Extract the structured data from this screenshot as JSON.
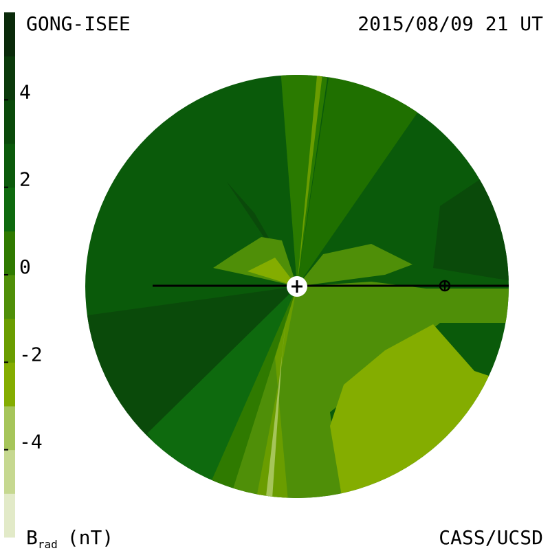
{
  "header": {
    "left": "GONG-ISEE",
    "right": "2015/08/09 21 UT"
  },
  "footer": {
    "right": "CASS/UCSD"
  },
  "colorbar": {
    "label": "B",
    "subscript": "rad",
    "unit": "(nT)",
    "lim": [
      -6,
      6
    ],
    "ticks": [
      4,
      2,
      0,
      -2,
      -4
    ],
    "bands": [
      "#e2eac8",
      "#c6d890",
      "#a6c55a",
      "#84ad00",
      "#6a9d00",
      "#4f8f08",
      "#2f7a00",
      "#0e6a0e",
      "#0b5a0b",
      "#0a4a0a",
      "#0b3a0b",
      "#0a2a0a"
    ]
  }
}
